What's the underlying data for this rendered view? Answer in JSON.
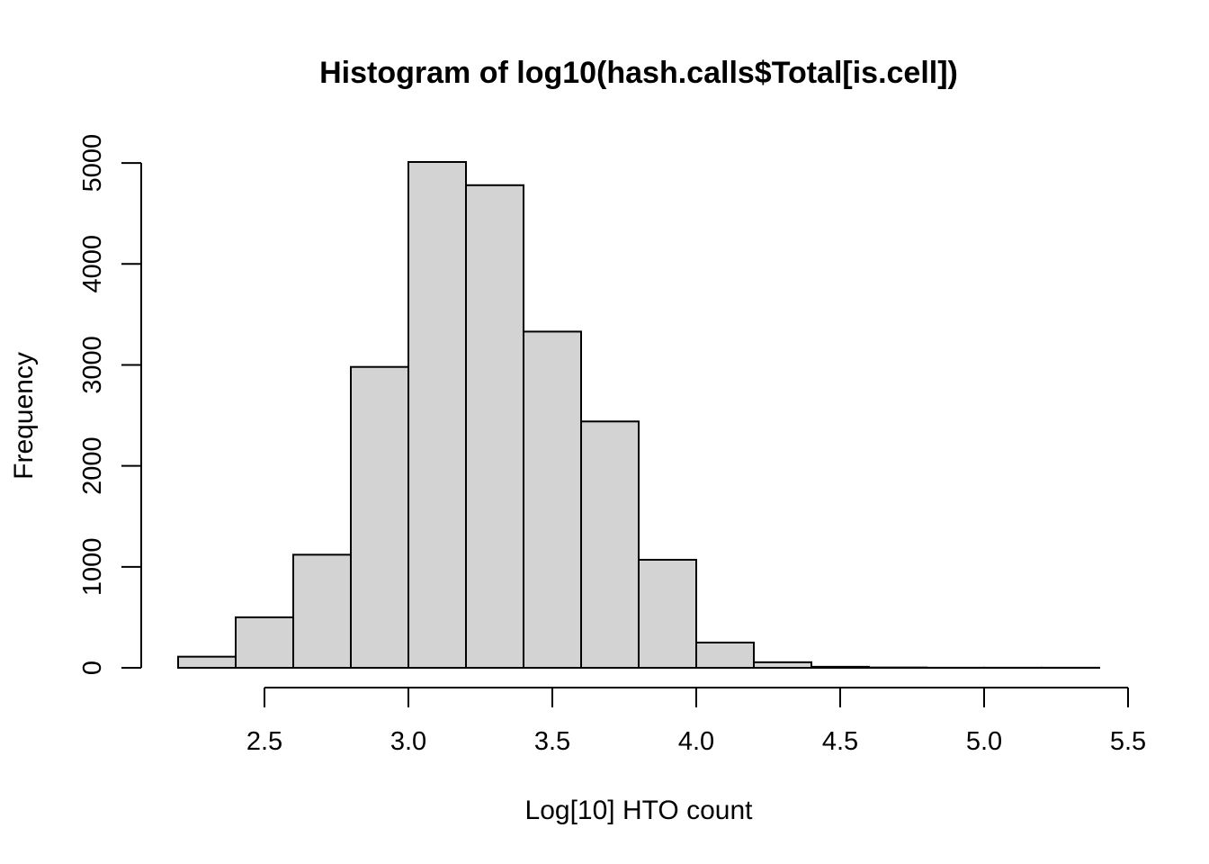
{
  "chart_data": {
    "type": "bar",
    "title": "Histogram of log10(hash.calls$Total[is.cell])",
    "xlabel": "Log[10] HTO count",
    "ylabel": "Frequency",
    "bin_width": 0.2,
    "bins": [
      {
        "x0": 2.2,
        "x1": 2.4,
        "count": 110
      },
      {
        "x0": 2.4,
        "x1": 2.6,
        "count": 500
      },
      {
        "x0": 2.6,
        "x1": 2.8,
        "count": 1120
      },
      {
        "x0": 2.8,
        "x1": 3.0,
        "count": 2980
      },
      {
        "x0": 3.0,
        "x1": 3.2,
        "count": 5010
      },
      {
        "x0": 3.2,
        "x1": 3.4,
        "count": 4780
      },
      {
        "x0": 3.4,
        "x1": 3.6,
        "count": 3330
      },
      {
        "x0": 3.6,
        "x1": 3.8,
        "count": 2440
      },
      {
        "x0": 3.8,
        "x1": 4.0,
        "count": 1070
      },
      {
        "x0": 4.0,
        "x1": 4.2,
        "count": 250
      },
      {
        "x0": 4.2,
        "x1": 4.4,
        "count": 55
      },
      {
        "x0": 4.4,
        "x1": 4.6,
        "count": 10
      },
      {
        "x0": 4.6,
        "x1": 4.8,
        "count": 3
      },
      {
        "x0": 4.8,
        "x1": 5.0,
        "count": 1
      },
      {
        "x0": 5.0,
        "x1": 5.2,
        "count": 1
      },
      {
        "x0": 5.2,
        "x1": 5.4,
        "count": 1
      }
    ],
    "xlim": [
      2.2,
      5.4
    ],
    "ylim": [
      0,
      5010
    ],
    "x_ticks": [
      {
        "value": 2.5,
        "label": "2.5"
      },
      {
        "value": 3.0,
        "label": "3.0"
      },
      {
        "value": 3.5,
        "label": "3.5"
      },
      {
        "value": 4.0,
        "label": "4.0"
      },
      {
        "value": 4.5,
        "label": "4.5"
      },
      {
        "value": 5.0,
        "label": "5.0"
      },
      {
        "value": 5.5,
        "label": "5.5"
      }
    ],
    "y_ticks": [
      {
        "value": 0,
        "label": "0"
      },
      {
        "value": 1000,
        "label": "1000"
      },
      {
        "value": 2000,
        "label": "2000"
      },
      {
        "value": 3000,
        "label": "3000"
      },
      {
        "value": 4000,
        "label": "4000"
      },
      {
        "value": 5000,
        "label": "5000"
      }
    ],
    "bar_fill": "#d3d3d3",
    "bar_stroke": "#000000",
    "grid": false,
    "legend": "none"
  }
}
